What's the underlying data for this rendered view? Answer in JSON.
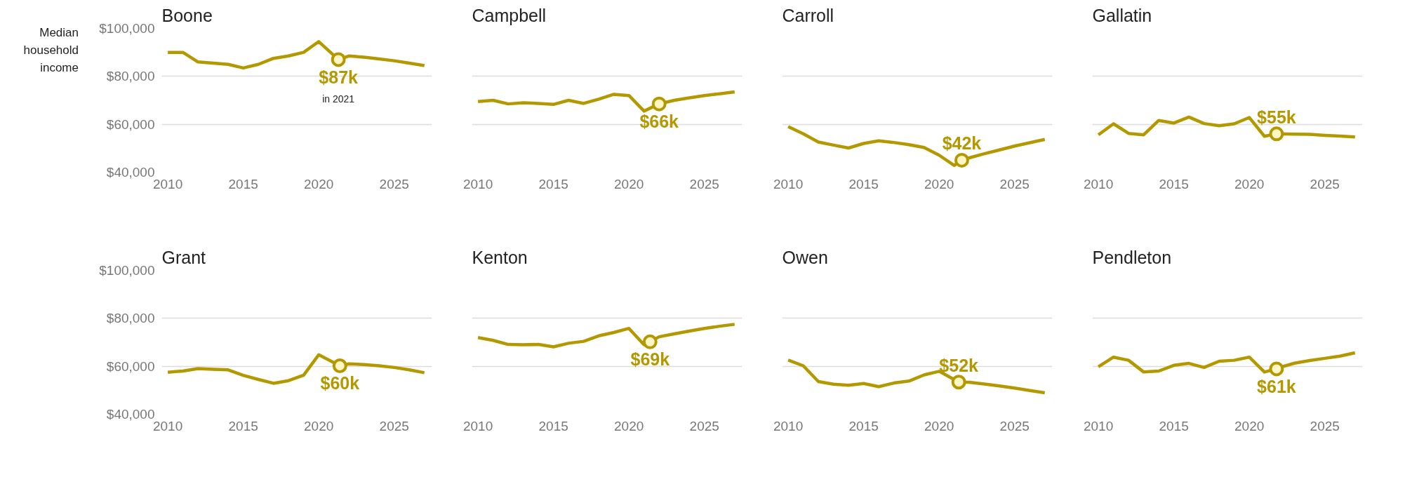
{
  "chart_data": [
    {
      "type": "line",
      "title": "Boone",
      "ylabel": "Median household income",
      "x": [
        2010,
        2011,
        2012,
        2013,
        2014,
        2015,
        2016,
        2017,
        2018,
        2019,
        2020,
        2021.3,
        2022,
        2023,
        2024,
        2025,
        2026,
        2027
      ],
      "series": [
        {
          "color": "#b39800",
          "values": [
            90000,
            90000,
            86000,
            85500,
            85000,
            83500,
            85000,
            87500,
            88500,
            90000,
            94500,
            87000,
            88500,
            88000,
            87300,
            86500,
            85500,
            84500
          ]
        },
        {
          "type": "scatter",
          "color": "#b39800",
          "x": [
            2021.3
          ],
          "values": [
            87000
          ]
        }
      ],
      "xlim": [
        2009.6,
        2027.5
      ],
      "ylim": [
        40000,
        100000
      ],
      "xticks": [
        2010,
        2015,
        2020,
        2025
      ],
      "yticks": [
        {
          "value": 40000,
          "label": "$40,000"
        },
        {
          "value": 60000,
          "label": "$60,000"
        },
        {
          "value": 80000,
          "label": "$80,000"
        },
        {
          "value": 100000,
          "label": "$100,000"
        }
      ],
      "grid": "y",
      "annotations": [
        {
          "text": "$87k",
          "x": 2021.3,
          "y": 87000
        },
        "in 2021"
      ]
    },
    {
      "type": "line",
      "title": "Campbell",
      "x": [
        2010,
        2011,
        2012,
        2013,
        2014,
        2015,
        2016,
        2017,
        2018,
        2019,
        2020,
        2021,
        2022,
        2023,
        2024,
        2025,
        2026,
        2027
      ],
      "series": [
        {
          "color": "#b39800",
          "values": [
            69500,
            70000,
            68500,
            69000,
            68700,
            68300,
            70000,
            68700,
            70500,
            72500,
            72000,
            65500,
            68500,
            70000,
            71000,
            72000,
            72700,
            73500
          ]
        },
        {
          "type": "scatter",
          "color": "#b39800",
          "x": [
            2022
          ],
          "values": [
            68500
          ]
        }
      ],
      "xlim": [
        2009.6,
        2027.5
      ],
      "ylim": [
        40000,
        100000
      ],
      "xticks": [
        2010,
        2015,
        2020,
        2025
      ],
      "yticks": [
        40000,
        60000,
        80000,
        100000
      ],
      "grid": "y",
      "tick_labels": "x",
      "annotations": [
        {
          "text": "$66k",
          "x": 2022,
          "y": 68500
        }
      ]
    },
    {
      "type": "line",
      "title": "Carroll",
      "x": [
        2010,
        2011,
        2012,
        2013,
        2014,
        2015,
        2016,
        2017,
        2018,
        2019,
        2020,
        2021,
        2021.5,
        2022,
        2023,
        2024,
        2025,
        2026,
        2027
      ],
      "series": [
        {
          "color": "#b39800",
          "values": [
            59000,
            56000,
            52600,
            51300,
            50100,
            52000,
            53100,
            52400,
            51500,
            50300,
            47100,
            42800,
            45000,
            46000,
            47700,
            49300,
            50900,
            52300,
            53700
          ]
        },
        {
          "type": "scatter",
          "color": "#b39800",
          "x": [
            2021.5
          ],
          "values": [
            45000
          ]
        }
      ],
      "xlim": [
        2009.6,
        2027.5
      ],
      "ylim": [
        40000,
        100000
      ],
      "xticks": [
        2010,
        2015,
        2020,
        2025
      ],
      "yticks": [
        40000,
        60000,
        80000,
        100000
      ],
      "grid": "y",
      "tick_labels": "x",
      "annotations": [
        {
          "text": "$42k",
          "x": 2021.5,
          "y": 45000
        }
      ]
    },
    {
      "type": "line",
      "title": "Gallatin",
      "x": [
        2010,
        2011,
        2012,
        2013,
        2014,
        2015,
        2016,
        2017,
        2018,
        2019,
        2020,
        2021,
        2021.8,
        2023,
        2024,
        2025,
        2026,
        2027
      ],
      "series": [
        {
          "color": "#b39800",
          "values": [
            55600,
            60200,
            56200,
            55600,
            61600,
            60500,
            63000,
            60300,
            59400,
            60200,
            62800,
            55000,
            56000,
            55900,
            55800,
            55400,
            55100,
            54700
          ]
        },
        {
          "type": "scatter",
          "color": "#b39800",
          "x": [
            2021.8
          ],
          "values": [
            56000
          ]
        }
      ],
      "xlim": [
        2009.6,
        2027.5
      ],
      "ylim": [
        40000,
        100000
      ],
      "xticks": [
        2010,
        2015,
        2020,
        2025
      ],
      "yticks": [
        40000,
        60000,
        80000,
        100000
      ],
      "grid": "y",
      "tick_labels": "x",
      "annotations": [
        {
          "text": "$55k",
          "x": 2021.8,
          "y": 56000
        }
      ]
    },
    {
      "type": "line",
      "title": "Grant",
      "x": [
        2010,
        2011,
        2012,
        2013,
        2014,
        2015,
        2016,
        2017,
        2018,
        2019,
        2020,
        2021.4,
        2022,
        2023,
        2024,
        2025,
        2026,
        2027
      ],
      "series": [
        {
          "color": "#b39800",
          "values": [
            57500,
            58000,
            59000,
            58700,
            58500,
            56200,
            54500,
            52900,
            54000,
            56300,
            64800,
            60200,
            61000,
            60700,
            60200,
            59500,
            58500,
            57300
          ]
        },
        {
          "type": "scatter",
          "color": "#b39800",
          "x": [
            2021.4
          ],
          "values": [
            60200
          ]
        }
      ],
      "xlim": [
        2009.6,
        2027.5
      ],
      "ylim": [
        40000,
        100000
      ],
      "xticks": [
        2010,
        2015,
        2020,
        2025
      ],
      "yticks": [
        {
          "value": 40000,
          "label": "$40,000"
        },
        {
          "value": 60000,
          "label": "$60,000"
        },
        {
          "value": 80000,
          "label": "$80,000"
        },
        {
          "value": 100000,
          "label": "$100,000"
        }
      ],
      "grid": "y",
      "annotations": [
        {
          "text": "$60k",
          "x": 2021.4,
          "y": 60200
        }
      ]
    },
    {
      "type": "line",
      "title": "Kenton",
      "x": [
        2010,
        2011,
        2012,
        2013,
        2014,
        2015,
        2016,
        2017,
        2018,
        2019,
        2020,
        2021,
        2021.4,
        2022,
        2023,
        2024,
        2025,
        2026,
        2027
      ],
      "series": [
        {
          "color": "#b39800",
          "values": [
            72000,
            70800,
            69100,
            69000,
            69100,
            68100,
            69600,
            70400,
            72700,
            74100,
            75800,
            69000,
            70200,
            72300,
            73500,
            74700,
            75800,
            76700,
            77500
          ]
        },
        {
          "type": "scatter",
          "color": "#b39800",
          "x": [
            2021.4
          ],
          "values": [
            70200
          ]
        }
      ],
      "xlim": [
        2009.6,
        2027.5
      ],
      "ylim": [
        40000,
        100000
      ],
      "xticks": [
        2010,
        2015,
        2020,
        2025
      ],
      "yticks": [
        40000,
        60000,
        80000,
        100000
      ],
      "grid": "y",
      "tick_labels": "x",
      "annotations": [
        {
          "text": "$69k",
          "x": 2021.4,
          "y": 70200
        }
      ]
    },
    {
      "type": "line",
      "title": "Owen",
      "x": [
        2010,
        2011,
        2012,
        2013,
        2014,
        2015,
        2016,
        2017,
        2018,
        2019,
        2020,
        2021.3,
        2022,
        2023,
        2024,
        2025,
        2026,
        2027
      ],
      "series": [
        {
          "color": "#b39800",
          "values": [
            62600,
            60200,
            53600,
            52500,
            52100,
            52800,
            51500,
            53000,
            53800,
            56400,
            57900,
            53400,
            53300,
            52600,
            51800,
            50900,
            49900,
            48900
          ]
        },
        {
          "type": "scatter",
          "color": "#b39800",
          "x": [
            2021.3
          ],
          "values": [
            53400
          ]
        }
      ],
      "xlim": [
        2009.6,
        2027.5
      ],
      "ylim": [
        40000,
        100000
      ],
      "xticks": [
        2010,
        2015,
        2020,
        2025
      ],
      "yticks": [
        40000,
        60000,
        80000,
        100000
      ],
      "grid": "y",
      "tick_labels": "x",
      "annotations": [
        {
          "text": "$52k",
          "x": 2021.3,
          "y": 53400
        }
      ]
    },
    {
      "type": "line",
      "title": "Pendleton",
      "x": [
        2010,
        2011,
        2012,
        2013,
        2014,
        2015,
        2016,
        2017,
        2018,
        2019,
        2020,
        2021,
        2021.8,
        2022,
        2023,
        2024,
        2025,
        2026,
        2027
      ],
      "series": [
        {
          "color": "#b39800",
          "values": [
            59800,
            63800,
            62500,
            57600,
            58000,
            60400,
            61200,
            59500,
            62100,
            62500,
            63800,
            57600,
            58900,
            59500,
            61300,
            62400,
            63300,
            64200,
            65600
          ]
        },
        {
          "type": "scatter",
          "color": "#b39800",
          "x": [
            2021.8
          ],
          "values": [
            58900
          ]
        }
      ],
      "xlim": [
        2009.6,
        2027.5
      ],
      "ylim": [
        40000,
        100000
      ],
      "xticks": [
        2010,
        2015,
        2020,
        2025
      ],
      "yticks": [
        40000,
        60000,
        80000,
        100000
      ],
      "grid": "y",
      "tick_labels": "x",
      "annotations": [
        {
          "text": "$61k",
          "x": 2021.8,
          "y": 58900
        }
      ]
    }
  ]
}
